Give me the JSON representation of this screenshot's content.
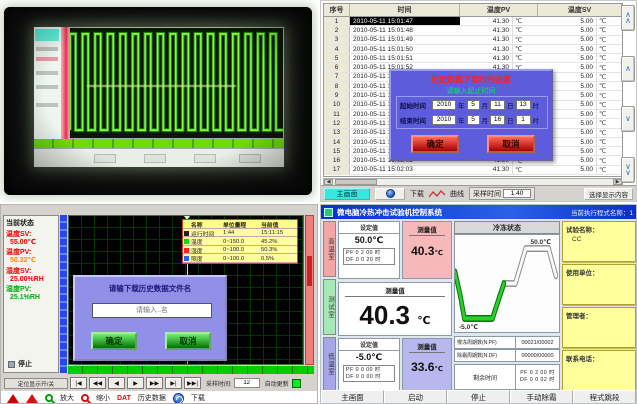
{
  "a": {
    "wave": {
      "cycles": 17
    }
  },
  "b": {
    "header": {
      "c1": "序号",
      "c2": "时间",
      "c3": "温度PV",
      "c4": "温度SV"
    },
    "unit": "℃",
    "rows": [
      {
        "n": "1",
        "t": "2010-05-11 15:01:47",
        "v1": "41.30",
        "v2": "5.00",
        "sel": true
      },
      {
        "n": "2",
        "t": "2010-05-11 15:01:48",
        "v1": "41.30",
        "v2": "5.00"
      },
      {
        "n": "3",
        "t": "2010-05-11 15:01:49",
        "v1": "41.30",
        "v2": "5.00"
      },
      {
        "n": "4",
        "t": "2010-05-11 15:01:50",
        "v1": "41.30",
        "v2": "5.00"
      },
      {
        "n": "5",
        "t": "2010-05-11 15:01:51",
        "v1": "41.30",
        "v2": "5.00"
      },
      {
        "n": "6",
        "t": "2010-05-11 15:01:52",
        "v1": "41.30",
        "v2": "5.00"
      },
      {
        "n": "7",
        "t": "2010-05-11 15:01:53",
        "v1": "41.20",
        "v2": "5.00"
      },
      {
        "n": "8",
        "t": "2010-05-11 15:01:54",
        "v1": "41.20",
        "v2": "5.00"
      },
      {
        "n": "9",
        "t": "2010-05-11 15:01:55",
        "v1": "41.30",
        "v2": "5.00"
      },
      {
        "n": "10",
        "t": "2010-05-11 15:01:56",
        "v1": "41.30",
        "v2": "5.00"
      },
      {
        "n": "11",
        "t": "2010-05-11 15:01:57",
        "v1": "41.30",
        "v2": "5.00"
      },
      {
        "n": "12",
        "t": "2010-05-11 15:01:58",
        "v1": "41.30",
        "v2": "5.00"
      },
      {
        "n": "13",
        "t": "2010-05-11 15:01:59",
        "v1": "41.30",
        "v2": "5.00"
      },
      {
        "n": "14",
        "t": "2010-05-11 15:02:00",
        "v1": "41.30",
        "v2": "5.00"
      },
      {
        "n": "15",
        "t": "2010-05-11 15:02:01",
        "v1": "41.30",
        "v2": "5.00"
      },
      {
        "n": "16",
        "t": "2010-05-11 15:02:02",
        "v1": "41.30",
        "v2": "5.00"
      },
      {
        "n": "17",
        "t": "2010-05-11 15:02:03",
        "v1": "41.30",
        "v2": "5.00"
      }
    ],
    "scroll_buttons": [
      "∧\n∧",
      "∧",
      "∨",
      "∨\n∨"
    ],
    "dialog": {
      "title": "历史数据下载时间设置",
      "subtitle": "请输入起止时间",
      "start_label": "起始时间",
      "end_label": "结束时间",
      "start": {
        "y": "2010",
        "mo": "5",
        "d": "11",
        "h": "13"
      },
      "end": {
        "y": "2010",
        "mo": "5",
        "d": "16",
        "h": "1"
      },
      "units": {
        "y": "年",
        "mo": "月",
        "d": "日",
        "h": "时"
      },
      "ok": "确定",
      "cancel": "取消"
    },
    "bottom": {
      "home": "主画面",
      "download": "下载",
      "curve": "曲线",
      "sample_label": "采样时间",
      "sample_value": "1.40",
      "select": "选择显示内容"
    }
  },
  "c": {
    "status_title": "当前状态",
    "readings": [
      {
        "label": "温度SV:",
        "value": "55.00℃",
        "label_color": "#ee0000",
        "value_color": "#ee0000"
      },
      {
        "label": "温度PV:",
        "value": "50.32℃",
        "label_color": "#ee0000",
        "value_color": "#ff8800"
      },
      {
        "label": "湿度SV:",
        "value": "25.00%RH",
        "label_color": "#ee0000",
        "value_color": "#ee0000"
      },
      {
        "label": "湿度PV:",
        "value": "25.1%RH",
        "label_color": "#00aa00",
        "value_color": "#00aa00"
      }
    ],
    "stop_label": "停止",
    "legend": {
      "headers": [
        "名称",
        "单位量程",
        "当前值"
      ],
      "rows": [
        {
          "color": "#222222",
          "name": "运行时间",
          "range": "1:44",
          "value": "15:11:15"
        },
        {
          "color": "#00dd00",
          "name": "温度",
          "range": "0~150.0",
          "value": "45.2%"
        },
        {
          "color": "#ff2222",
          "name": "湿度",
          "range": "0~100.0",
          "value": "50.3%"
        },
        {
          "color": "#2266ff",
          "name": "照度",
          "range": "0~100.0",
          "value": "0.5%"
        }
      ]
    },
    "dialog": {
      "title": "请输下载历史数据文件名",
      "input_placeholder": "请输入..名",
      "ok": "确定",
      "cancel": "取消"
    },
    "toolbar1": {
      "toggle": "定位显示开/关",
      "nav": [
        "|◀",
        "◀◀",
        "◀",
        "▶",
        "▶▶",
        "▶|",
        "▶▶|"
      ],
      "sample_label": "采样时间:",
      "sample_value": "12",
      "update_label": "自动更新"
    },
    "toolbar2": {
      "zoom_in": "放大",
      "zoom_out": "缩小",
      "dat": "DAT",
      "history": "历史数据",
      "download": "下载"
    }
  },
  "d": {
    "title": "微电脑冷热冲击试验机控制系统",
    "title_right": "当前执行程式名称：1",
    "tabs": [
      {
        "label": "高温室",
        "color": "#f2a6a6"
      },
      {
        "label": "测试室",
        "color": "#a6e8b6"
      },
      {
        "label": "低温室",
        "color": "#a6a6e8"
      }
    ],
    "set_label": "设定值",
    "meas_label": "测量值",
    "high": {
      "set": "50.0℃",
      "pf": "PF 0 2 00 时",
      "df": "DF 0 0 20 时",
      "meas": "40.3",
      "unit": "℃",
      "meas_bg": "#f6b8b8"
    },
    "main": {
      "meas": "40.3",
      "unit": "℃"
    },
    "low": {
      "set": "-5.0℃",
      "pf": "PF 0 0 00 时",
      "df": "DF 0 0 00 时",
      "meas": "33.6",
      "unit": "℃",
      "meas_bg": "#b8b8ee"
    },
    "chart": {
      "title": "冷冻状态",
      "high_label": "50.0℃",
      "low_label": "-5.0℃",
      "points": [
        [
          0,
          38
        ],
        [
          5,
          62
        ],
        [
          9,
          86
        ],
        [
          36,
          86
        ],
        [
          47,
          50
        ],
        [
          58,
          50
        ],
        [
          68,
          14
        ],
        [
          90,
          14
        ],
        [
          97,
          42
        ]
      ],
      "green_until": 5
    },
    "info": [
      {
        "label": "慢冻周期数(N:PF)",
        "value": "00021/00002"
      },
      {
        "label": "除霜周期数(N:DF)",
        "value": "00000/00000"
      }
    ],
    "remain": {
      "label": "剩余时间",
      "pf": "PF 0 2 00 时",
      "df": "DF 0 0 02 时"
    },
    "side": [
      {
        "label": "试验名称：",
        "value": "CC"
      },
      {
        "label": "使用单位：",
        "value": ""
      },
      {
        "label": "管理者：",
        "value": ""
      },
      {
        "label": "联系电话：",
        "value": ""
      }
    ],
    "buttons": [
      "主画面",
      "启动",
      "停止",
      "手动除霜",
      "程式跳段"
    ]
  }
}
